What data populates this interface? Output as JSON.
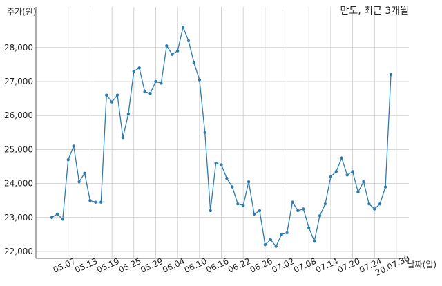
{
  "chart_data": {
    "type": "line",
    "title": "만도, 최근 3개월",
    "ylabel": "주가(원)",
    "xlabel": "날짜(일)",
    "ylim": [
      21800,
      28900
    ],
    "yticks": [
      22000,
      23000,
      24000,
      25000,
      26000,
      27000,
      28000
    ],
    "ytick_labels": [
      "22,000",
      "23,000",
      "24,000",
      "25,000",
      "26,000",
      "27,000",
      "28,000"
    ],
    "x_tick_labels": [
      "05.07",
      "05.13",
      "05.19",
      "05.25",
      "05.29",
      "06.04",
      "06.10",
      "06.16",
      "06.22",
      "06.26",
      "07.02",
      "07.08",
      "07.14",
      "07.20",
      "07.24",
      "20.07.30"
    ],
    "x_tick_index": [
      3,
      7,
      11,
      15,
      19,
      23,
      27,
      31,
      35,
      39,
      43,
      47,
      51,
      55,
      59,
      63
    ],
    "grid": true,
    "color": "#2b7bb0",
    "series": [
      {
        "values": [
          23000,
          23100,
          22950,
          24700,
          25100,
          24050,
          24300,
          23500,
          23450,
          23450,
          26600,
          26400,
          26600,
          25350,
          26050,
          27300,
          27400,
          26700,
          26650,
          27000,
          26950,
          28050,
          27800,
          27900,
          28600,
          28200,
          27550,
          27050,
          25500,
          23200,
          24600,
          24550,
          24150,
          23900,
          23400,
          23350,
          24050,
          23100,
          23200,
          22200,
          22350,
          22150,
          22500,
          22550,
          23450,
          23200,
          23250,
          22700,
          22300,
          23050,
          23400,
          24200,
          24350,
          24750,
          24250,
          24350,
          23750,
          24050,
          23400,
          23250,
          23400,
          23900,
          27200
        ]
      }
    ]
  }
}
